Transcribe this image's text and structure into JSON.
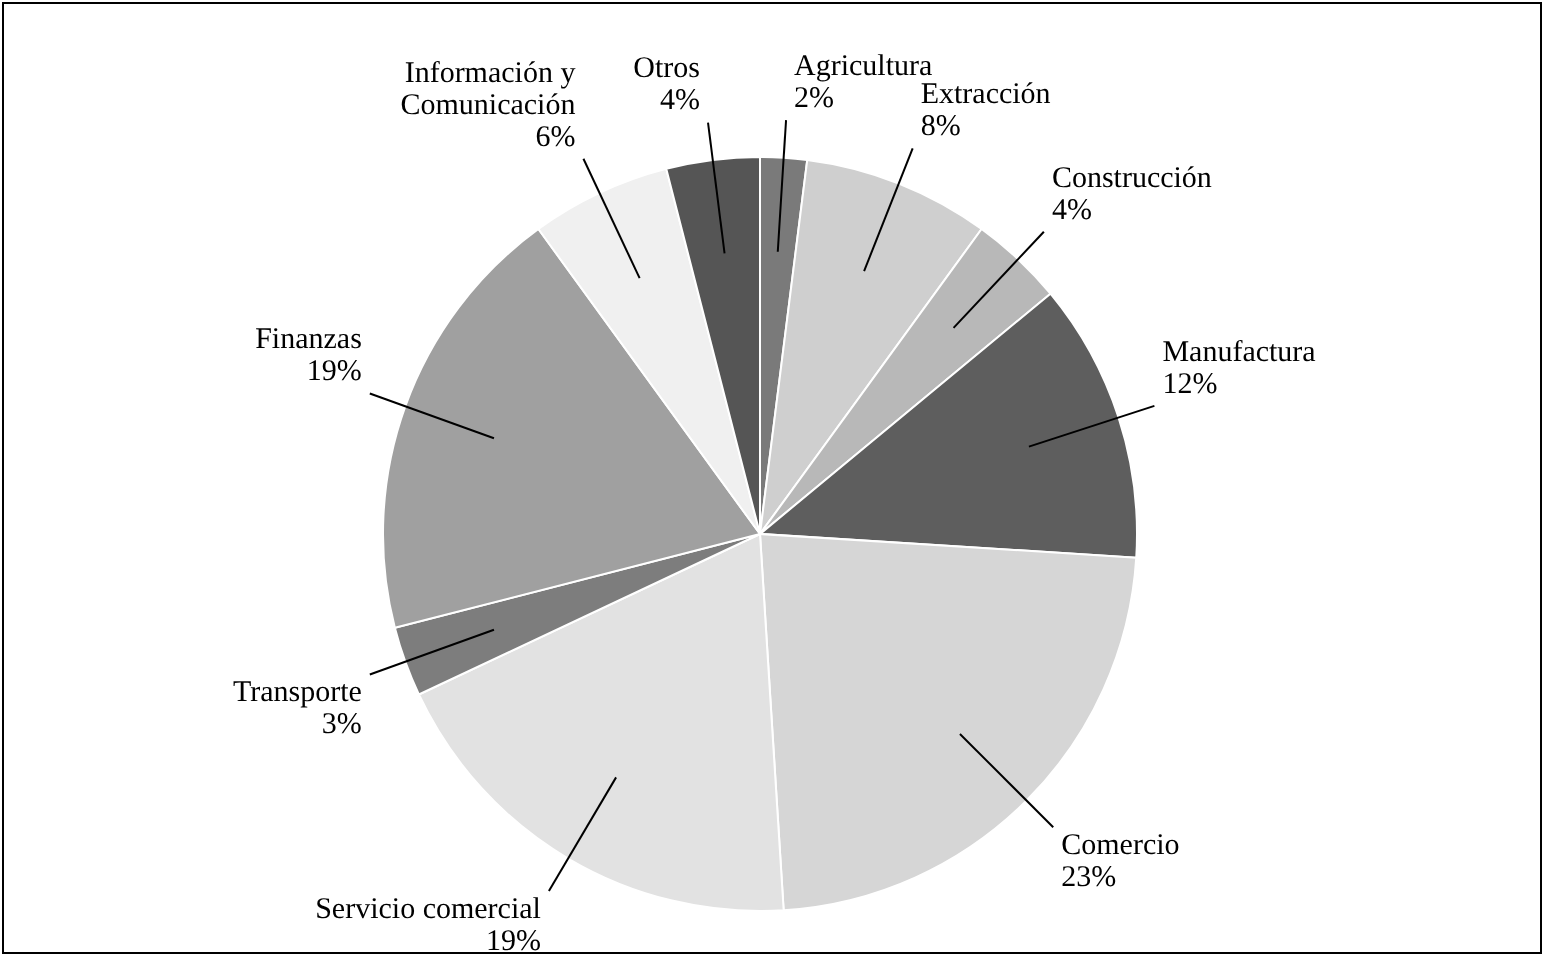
{
  "chart_data": {
    "type": "pie",
    "categories": [
      "Agricultura",
      "Extracción",
      "Construcción",
      "Manufactura",
      "Comercio",
      "Servicio comercial",
      "Transporte",
      "Finanzas",
      "Información y Comunicación",
      "Otros"
    ],
    "values": [
      2,
      8,
      4,
      12,
      23,
      19,
      3,
      19,
      6,
      4
    ],
    "value_labels": [
      "2%",
      "8%",
      "4%",
      "12%",
      "23%",
      "19%",
      "3%",
      "19%",
      "6%",
      "4%"
    ],
    "colors": [
      "#7a7a7a",
      "#cfcfcf",
      "#b8b8b8",
      "#5e5e5e",
      "#d6d6d6",
      "#e2e2e2",
      "#7d7d7d",
      "#a0a0a0",
      "#f0f0f0",
      "#555555"
    ],
    "legend": false
  }
}
